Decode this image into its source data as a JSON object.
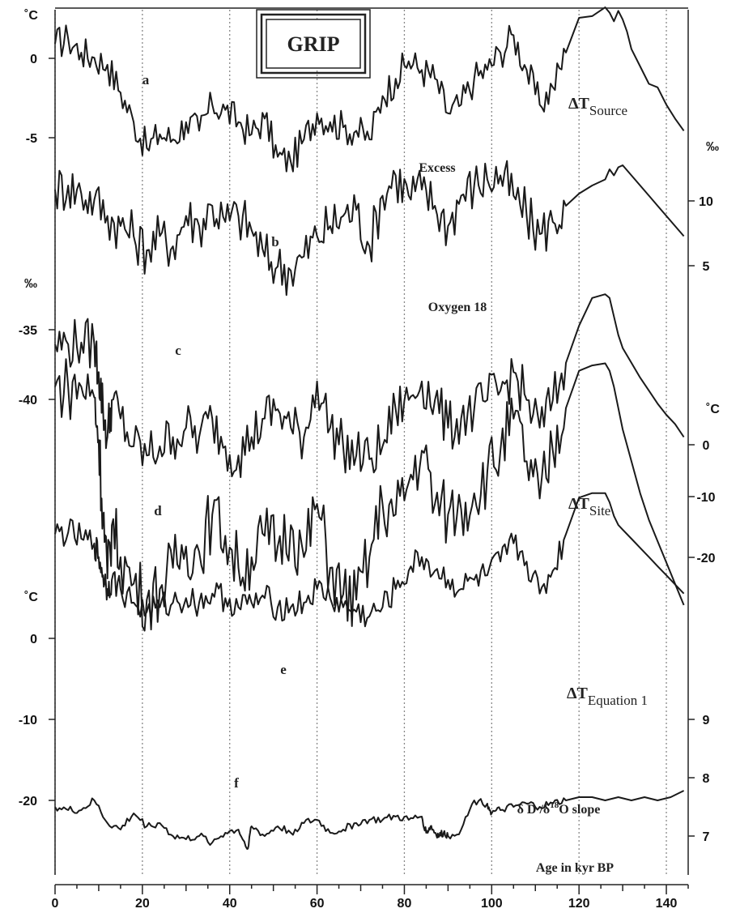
{
  "chart_data": {
    "type": "line",
    "title": "GRIP",
    "xlabel": "Age in kyr BP",
    "xlim": [
      0,
      145
    ],
    "xticks": [
      "0",
      "20",
      "40",
      "60",
      "80",
      "100",
      "120",
      "140"
    ],
    "gridlines_x": [
      0,
      20,
      40,
      60,
      80,
      100,
      120,
      140
    ],
    "left_axes": [
      {
        "unit": "˚C",
        "ticks": [
          "0",
          "-5"
        ],
        "for_series": "a"
      },
      {
        "unit": "‰",
        "ticks": [
          "-35",
          "-40"
        ],
        "for_series": "c"
      },
      {
        "unit": "˚C",
        "ticks": [
          "0",
          "-10",
          "-20"
        ],
        "for_series": "e_f"
      }
    ],
    "right_axes": [
      {
        "unit": "‰",
        "ticks": [
          "10",
          "5"
        ],
        "for_series": "b"
      },
      {
        "unit": "˚C",
        "ticks": [
          "0",
          "-10",
          "-20"
        ],
        "for_series": "d"
      },
      {
        "unit": "",
        "ticks": [
          "9",
          "8",
          "7"
        ],
        "for_series": "f"
      }
    ],
    "series": [
      {
        "id": "a",
        "letter": "a",
        "name": "ΔT",
        "name_sub": "Source",
        "unit": "˚C",
        "axis": "left",
        "ylim": [
          -7.5,
          1.5
        ],
        "x": [
          0,
          3,
          6,
          9,
          12,
          15,
          18,
          21,
          24,
          27,
          30,
          33,
          36,
          39,
          42,
          45,
          48,
          51,
          54,
          57,
          60,
          63,
          66,
          69,
          72,
          75,
          78,
          81,
          84,
          87,
          90,
          93,
          96,
          99,
          102,
          105,
          108,
          111,
          114,
          117,
          120,
          123,
          126,
          127,
          128,
          129,
          130,
          131,
          132,
          134,
          136,
          138,
          140,
          142,
          144
        ],
        "y": [
          0,
          0.3,
          -0.5,
          -0.8,
          -1.2,
          -2.8,
          -4.5,
          -6.0,
          -5.2,
          -5.5,
          -4.5,
          -5.0,
          -3.5,
          -3.8,
          -4.5,
          -5.2,
          -4.3,
          -6.5,
          -6.8,
          -5.5,
          -4.0,
          -4.5,
          -4.8,
          -5.0,
          -5.5,
          -3.0,
          -2.0,
          -1.0,
          -1.5,
          -2.0,
          -4.0,
          -3.5,
          -2.0,
          -1.5,
          -0.5,
          0.5,
          -1.5,
          -3.5,
          -2.5,
          -0.5,
          1.5,
          1.6,
          2.1,
          1.8,
          1.3,
          1.9,
          1.4,
          0.7,
          -0.3,
          -1.3,
          -2.3,
          -2.5,
          -3.5,
          -4.3,
          -5.0
        ]
      },
      {
        "id": "b",
        "letter": "b",
        "name": "Excess",
        "unit": "‰",
        "axis": "right",
        "ylim": [
          3,
          13
        ],
        "x": [
          0,
          3,
          6,
          9,
          12,
          15,
          18,
          21,
          24,
          27,
          30,
          33,
          36,
          39,
          42,
          45,
          48,
          51,
          54,
          57,
          60,
          63,
          66,
          69,
          72,
          75,
          78,
          81,
          84,
          87,
          90,
          93,
          96,
          99,
          102,
          105,
          108,
          111,
          114,
          117,
          120,
          123,
          126,
          127,
          128,
          129,
          130,
          132,
          134,
          136,
          138,
          140,
          142,
          144
        ],
        "y": [
          9.8,
          10.0,
          9.6,
          9.3,
          8.5,
          8.0,
          7.5,
          6.8,
          7.5,
          7.0,
          8.5,
          8.0,
          9.0,
          8.2,
          8.5,
          7.8,
          6.5,
          6.0,
          5.8,
          6.5,
          7.5,
          8.0,
          8.5,
          8.8,
          7.0,
          9.5,
          10.5,
          9.5,
          9.8,
          9.0,
          8.0,
          9.5,
          10.0,
          10.3,
          10.5,
          9.5,
          8.5,
          7.6,
          8.2,
          9.0,
          9.6,
          10.0,
          10.3,
          10.8,
          10.5,
          10.9,
          11.0,
          10.5,
          10.0,
          9.5,
          9.0,
          8.5,
          8.0,
          7.5
        ]
      },
      {
        "id": "c",
        "letter": "c",
        "name": "Oxygen 18",
        "unit": "‰",
        "axis": "left",
        "ylim": [
          -43.3,
          -31.2
        ],
        "x": [
          0,
          3,
          6,
          9,
          10,
          11,
          12,
          13,
          15,
          18,
          21,
          24,
          27,
          30,
          33,
          36,
          39,
          42,
          45,
          48,
          51,
          54,
          57,
          60,
          63,
          66,
          69,
          72,
          75,
          78,
          81,
          84,
          87,
          90,
          93,
          96,
          99,
          102,
          105,
          108,
          111,
          114,
          117,
          120,
          123,
          126,
          127,
          128,
          129,
          130,
          132,
          134,
          136,
          138,
          140,
          142,
          144
        ],
        "y": [
          -35.0,
          -35.0,
          -34.9,
          -35.0,
          -36.5,
          -38.5,
          -40.0,
          -38.0,
          -39.0,
          -40.5,
          -41.0,
          -40.5,
          -40.0,
          -39.5,
          -40.0,
          -39.0,
          -40.5,
          -41.0,
          -40.0,
          -39.0,
          -38.5,
          -39.5,
          -40.0,
          -37.0,
          -39.5,
          -40.5,
          -41.0,
          -41.2,
          -40.5,
          -38.5,
          -38.0,
          -37.0,
          -38.0,
          -39.5,
          -39.0,
          -38.5,
          -38.0,
          -37.5,
          -36.5,
          -38.0,
          -39.5,
          -38.0,
          -36.0,
          -34.0,
          -32.5,
          -32.3,
          -32.5,
          -33.5,
          -34.5,
          -35.2,
          -36.0,
          -36.8,
          -37.5,
          -38.2,
          -38.8,
          -39.3,
          -40.0
        ]
      },
      {
        "id": "d",
        "letter": "d",
        "name": "ΔT",
        "name_sub": "Site",
        "unit": "˚C",
        "axis": "right",
        "ylim": [
          -21.5,
          3
        ],
        "x": [
          0,
          3,
          6,
          9,
          10,
          11,
          12,
          13,
          15,
          18,
          21,
          24,
          27,
          30,
          33,
          36,
          39,
          42,
          45,
          48,
          51,
          54,
          57,
          60,
          63,
          66,
          69,
          72,
          75,
          78,
          81,
          84,
          87,
          90,
          93,
          96,
          99,
          102,
          105,
          108,
          111,
          114,
          117,
          120,
          123,
          126,
          127,
          128,
          129,
          130,
          132,
          134,
          136,
          138,
          140,
          142,
          144
        ],
        "y": [
          0,
          0,
          0,
          -1.0,
          -5.0,
          -12.0,
          -18.0,
          -13.0,
          -16.0,
          -18.5,
          -20.0,
          -19.0,
          -17.0,
          -15.0,
          -15.5,
          -12.0,
          -14.0,
          -17.0,
          -16.0,
          -14.0,
          -15.0,
          -13.0,
          -16.0,
          -11.0,
          -17.0,
          -19.5,
          -20.0,
          -16.0,
          -11.0,
          -12.0,
          -9.0,
          -6.0,
          -11.0,
          -12.0,
          -11.5,
          -10.0,
          -8.0,
          -6.0,
          -3.0,
          -7.0,
          -10.5,
          -6.0,
          -2.0,
          1.5,
          2.0,
          2.2,
          1.5,
          0,
          -2.0,
          -4.0,
          -7.0,
          -10.0,
          -12.5,
          -14.5,
          -16.5,
          -18.5,
          -20.5
        ]
      },
      {
        "id": "e",
        "letter": "e",
        "name": "ΔT",
        "name_sub": "Equation 1",
        "unit": "˚C",
        "axis": "left",
        "ylim": [
          -31,
          10
        ],
        "x": [
          0,
          3,
          6,
          9,
          10,
          11,
          12,
          13,
          15,
          18,
          21,
          24,
          27,
          30,
          33,
          36,
          39,
          42,
          45,
          48,
          51,
          54,
          57,
          60,
          63,
          66,
          69,
          72,
          75,
          78,
          81,
          84,
          87,
          90,
          93,
          96,
          99,
          102,
          105,
          108,
          111,
          114,
          117,
          120,
          123,
          126,
          127,
          128,
          129,
          130,
          132,
          134,
          136,
          138,
          140,
          142,
          144
        ],
        "y": [
          1.0,
          1.2,
          0.5,
          0,
          -1.5,
          -3.5,
          -5.0,
          -4.0,
          -5.0,
          -6.5,
          -7.5,
          -7.0,
          -6.5,
          -6.0,
          -6.5,
          -5.5,
          -6.0,
          -7.0,
          -6.5,
          -6.0,
          -7.0,
          -7.0,
          -6.5,
          -5.0,
          -6.0,
          -7.0,
          -7.5,
          -8.0,
          -7.0,
          -5.0,
          -3.0,
          -1.5,
          -3.0,
          -4.0,
          -5.0,
          -4.0,
          -3.5,
          -2.0,
          0,
          -2.0,
          -5.5,
          -3.0,
          1.0,
          5.0,
          5.5,
          5.5,
          4.5,
          3.0,
          2.0,
          1.5,
          0.5,
          -0.5,
          -1.5,
          -2.5,
          -3.5,
          -4.5,
          -5.5
        ]
      },
      {
        "id": "f",
        "letter": "f",
        "name": "δ D /δ18O slope",
        "unit": "",
        "axis": "right",
        "ylim": [
          6.5,
          11.5
        ],
        "x": [
          0,
          3,
          6,
          9,
          12,
          15,
          18,
          21,
          24,
          27,
          30,
          33,
          36,
          39,
          42,
          44,
          45,
          48,
          51,
          54,
          57,
          60,
          63,
          66,
          69,
          72,
          75,
          78,
          81,
          84,
          85,
          86,
          87,
          88,
          89,
          90,
          93,
          96,
          99,
          100,
          102,
          105,
          108,
          111,
          114,
          117,
          120,
          123,
          126,
          129,
          132,
          135,
          138,
          141,
          144
        ],
        "y": [
          8.1,
          8.0,
          8.0,
          8.3,
          7.6,
          7.4,
          7.9,
          7.5,
          7.6,
          7.2,
          7.1,
          7.2,
          7.0,
          7.3,
          7.4,
          6.8,
          7.5,
          7.2,
          7.5,
          7.3,
          7.6,
          7.7,
          7.3,
          7.4,
          7.6,
          7.7,
          7.7,
          7.8,
          7.7,
          7.8,
          7.3,
          7.5,
          7.3,
          7.2,
          7.3,
          7.2,
          7.4,
          8.3,
          8.2,
          7.9,
          8.0,
          8.1,
          8.2,
          8.1,
          8.2,
          8.3,
          8.4,
          8.4,
          8.3,
          8.4,
          8.3,
          8.4,
          8.3,
          8.4,
          8.6
        ]
      }
    ]
  }
}
